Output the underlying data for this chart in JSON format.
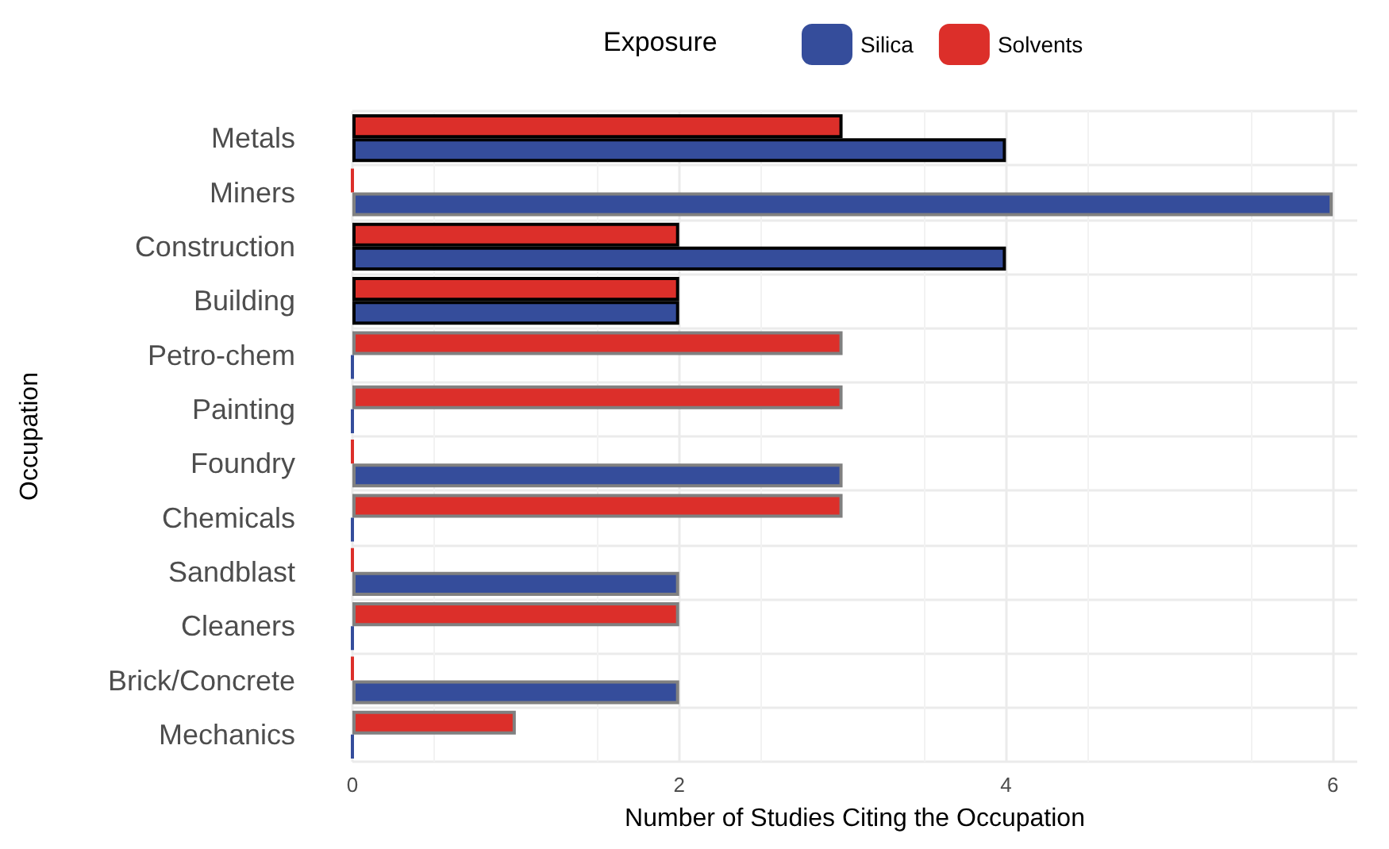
{
  "chart_data": {
    "type": "bar",
    "orientation": "horizontal",
    "categories": [
      "Metals",
      "Miners",
      "Construction",
      "Building",
      "Petro-chem",
      "Painting",
      "Foundry",
      "Chemicals",
      "Sandblast",
      "Cleaners",
      "Brick/Concrete",
      "Mechanics"
    ],
    "series": [
      {
        "name": "Solvents",
        "color": "#dc2f2a",
        "values": [
          3,
          0,
          2,
          2,
          3,
          3,
          0,
          3,
          0,
          2,
          0,
          1
        ]
      },
      {
        "name": "Silica",
        "color": "#354d9b",
        "values": [
          4,
          6,
          4,
          2,
          0,
          0,
          3,
          0,
          2,
          0,
          2,
          0
        ]
      }
    ],
    "xlabel": "Number of Studies Citing the Occupation",
    "ylabel": "Occupation",
    "legend_title": "Exposure",
    "xlim": [
      0,
      6.15
    ],
    "xticks": [
      0,
      2,
      4,
      6
    ],
    "grid": true,
    "legend": "top"
  }
}
